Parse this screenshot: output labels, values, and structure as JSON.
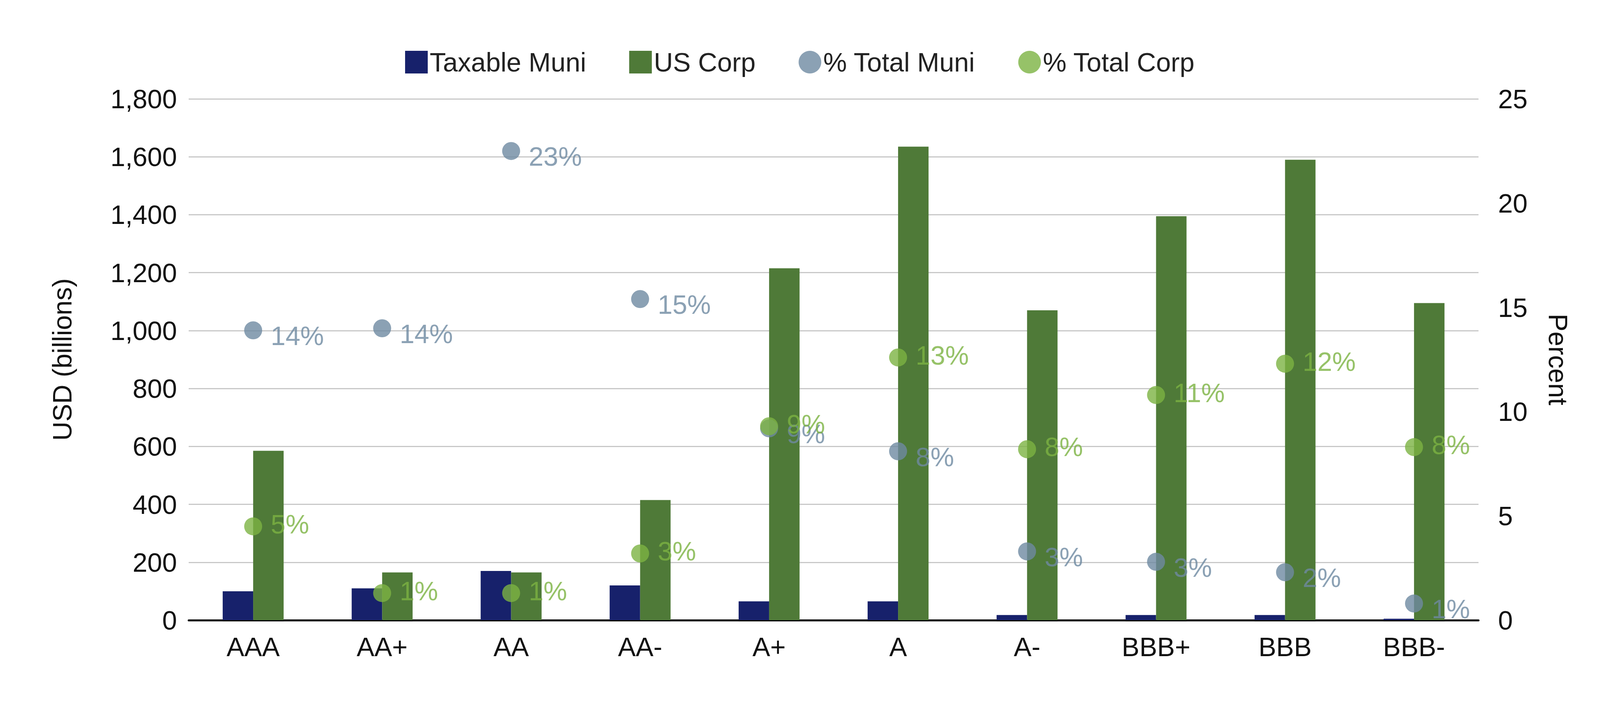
{
  "chart_data": {
    "type": "bar",
    "categories": [
      "AAA",
      "AA+",
      "AA",
      "AA-",
      "A+",
      "A",
      "A-",
      "BBB+",
      "BBB",
      "BBB-"
    ],
    "ylabel": "USD (billions)",
    "y2label": "Percent",
    "ylim": [
      0,
      1800
    ],
    "yticks": [
      0,
      200,
      400,
      600,
      800,
      {
        "value": 1000,
        "label": "1,000"
      },
      {
        "value": 1200,
        "label": "1,200"
      },
      {
        "value": 1400,
        "label": "1,400"
      },
      {
        "value": 1600,
        "label": "1,600"
      },
      {
        "value": 1800,
        "label": "1,800"
      }
    ],
    "y2lim": [
      0,
      25
    ],
    "y2ticks": [
      0,
      5,
      10,
      15,
      20,
      25
    ],
    "grid": true,
    "legend": "top",
    "series": [
      {
        "name": "Taxable Muni",
        "type": "bar",
        "color": "#17216b",
        "values": [
          100,
          110,
          170,
          120,
          65,
          65,
          18,
          18,
          18,
          5
        ]
      },
      {
        "name": "US Corp",
        "type": "bar",
        "color": "#4f7a38",
        "values": [
          585,
          165,
          165,
          415,
          1215,
          1635,
          1070,
          1395,
          1590,
          1095
        ]
      },
      {
        "name": "% Total Muni",
        "type": "scatter",
        "axis": "y2",
        "marker": "circle",
        "color": "#6e89a1",
        "data_labels": true,
        "values": [
          13.9,
          14.0,
          22.5,
          15.4,
          9.2,
          8.1,
          3.3,
          2.8,
          2.3,
          0.8
        ],
        "value_labels": [
          "14%",
          "14%",
          "23%",
          "15%",
          "9%",
          "8%",
          "3%",
          "3%",
          "2%",
          "1%"
        ]
      },
      {
        "name": "% Total Corp",
        "type": "scatter",
        "axis": "y2",
        "marker": "circle",
        "color": "#7cb342",
        "data_labels": true,
        "values": [
          4.5,
          1.3,
          1.3,
          3.2,
          9.3,
          12.6,
          8.2,
          10.8,
          12.3,
          8.3
        ],
        "value_labels": [
          "5%",
          "1%",
          "1%",
          "3%",
          "9%",
          "13%",
          "8%",
          "11%",
          "12%",
          "8%"
        ]
      }
    ]
  }
}
